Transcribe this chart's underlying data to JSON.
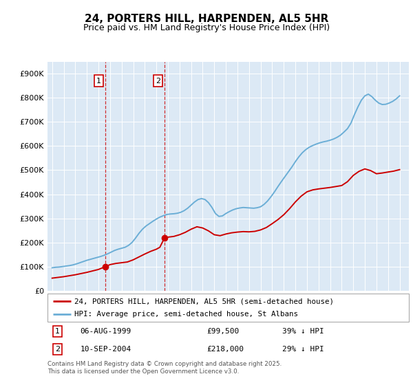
{
  "title": "24, PORTERS HILL, HARPENDEN, AL5 5HR",
  "subtitle": "Price paid vs. HM Land Registry's House Price Index (HPI)",
  "legend_line1": "24, PORTERS HILL, HARPENDEN, AL5 5HR (semi-detached house)",
  "legend_line2": "HPI: Average price, semi-detached house, St Albans",
  "table_row1": [
    "1",
    "06-AUG-1999",
    "£99,500",
    "39% ↓ HPI"
  ],
  "table_row2": [
    "2",
    "10-SEP-2004",
    "£218,000",
    "29% ↓ HPI"
  ],
  "footnote": "Contains HM Land Registry data © Crown copyright and database right 2025.\nThis data is licensed under the Open Government Licence v3.0.",
  "hpi_color": "#6baed6",
  "price_color": "#cc0000",
  "vline_color": "#cc0000",
  "bg_color": "#dce9f5",
  "ylim": [
    0,
    950000
  ],
  "yticks": [
    0,
    100000,
    200000,
    300000,
    400000,
    500000,
    600000,
    700000,
    800000,
    900000
  ],
  "purchase1_x": 1999.583,
  "purchase1_y": 99500,
  "purchase2_x": 2004.692,
  "purchase2_y": 218000,
  "vline1_x": 1999.583,
  "vline2_x": 2004.692,
  "xmin": 1994.6,
  "xmax": 2025.8,
  "hpi_years": [
    1995.0,
    1995.3,
    1995.6,
    1995.9,
    1996.2,
    1996.5,
    1996.8,
    1997.1,
    1997.4,
    1997.7,
    1998.0,
    1998.3,
    1998.6,
    1998.9,
    1999.2,
    1999.5,
    1999.8,
    2000.1,
    2000.4,
    2000.7,
    2001.0,
    2001.3,
    2001.6,
    2001.9,
    2002.2,
    2002.5,
    2002.8,
    2003.1,
    2003.4,
    2003.7,
    2004.0,
    2004.3,
    2004.6,
    2004.9,
    2005.2,
    2005.5,
    2005.8,
    2006.1,
    2006.4,
    2006.7,
    2007.0,
    2007.3,
    2007.6,
    2007.9,
    2008.2,
    2008.5,
    2008.8,
    2009.1,
    2009.4,
    2009.7,
    2010.0,
    2010.3,
    2010.6,
    2010.9,
    2011.2,
    2011.5,
    2011.8,
    2012.1,
    2012.4,
    2012.7,
    2013.0,
    2013.3,
    2013.6,
    2013.9,
    2014.2,
    2014.5,
    2014.8,
    2015.1,
    2015.4,
    2015.7,
    2016.0,
    2016.3,
    2016.6,
    2016.9,
    2017.2,
    2017.5,
    2017.8,
    2018.1,
    2018.4,
    2018.7,
    2019.0,
    2019.3,
    2019.6,
    2019.9,
    2020.2,
    2020.5,
    2020.8,
    2021.1,
    2021.4,
    2021.7,
    2022.0,
    2022.3,
    2022.6,
    2022.9,
    2023.2,
    2023.5,
    2023.8,
    2024.1,
    2024.4,
    2024.7,
    2025.0
  ],
  "hpi_values": [
    95000,
    97000,
    98000,
    100000,
    102000,
    104000,
    107000,
    111000,
    116000,
    121000,
    126000,
    130000,
    134000,
    138000,
    142000,
    147000,
    153000,
    160000,
    167000,
    172000,
    176000,
    180000,
    188000,
    200000,
    218000,
    238000,
    255000,
    268000,
    278000,
    288000,
    297000,
    305000,
    311000,
    316000,
    318000,
    319000,
    321000,
    325000,
    332000,
    342000,
    355000,
    368000,
    378000,
    382000,
    378000,
    365000,
    345000,
    320000,
    308000,
    310000,
    320000,
    328000,
    335000,
    340000,
    343000,
    345000,
    344000,
    343000,
    342000,
    344000,
    348000,
    358000,
    372000,
    390000,
    410000,
    432000,
    453000,
    473000,
    493000,
    513000,
    535000,
    555000,
    572000,
    585000,
    595000,
    602000,
    608000,
    613000,
    617000,
    620000,
    624000,
    629000,
    636000,
    645000,
    658000,
    672000,
    695000,
    730000,
    762000,
    790000,
    808000,
    815000,
    805000,
    790000,
    778000,
    772000,
    773000,
    778000,
    785000,
    795000,
    808000
  ],
  "price_years": [
    1995.0,
    1995.5,
    1996.0,
    1996.5,
    1997.0,
    1997.5,
    1998.0,
    1998.5,
    1999.0,
    1999.583,
    2000.0,
    2000.5,
    2001.0,
    2001.5,
    2002.0,
    2002.5,
    2003.0,
    2003.5,
    2004.0,
    2004.3,
    2004.692,
    2005.0,
    2005.5,
    2006.0,
    2006.5,
    2007.0,
    2007.5,
    2008.0,
    2008.5,
    2009.0,
    2009.5,
    2010.0,
    2010.5,
    2011.0,
    2011.5,
    2012.0,
    2012.5,
    2013.0,
    2013.5,
    2014.0,
    2014.5,
    2015.0,
    2015.5,
    2016.0,
    2016.5,
    2017.0,
    2017.5,
    2018.0,
    2018.5,
    2019.0,
    2019.5,
    2020.0,
    2020.5,
    2021.0,
    2021.5,
    2022.0,
    2022.5,
    2023.0,
    2023.5,
    2024.0,
    2024.5,
    2025.0
  ],
  "price_values": [
    52000,
    55000,
    58000,
    62000,
    66000,
    71000,
    76000,
    82000,
    88000,
    99500,
    108000,
    113000,
    116000,
    119000,
    128000,
    140000,
    152000,
    163000,
    172000,
    180000,
    218000,
    222000,
    225000,
    232000,
    242000,
    255000,
    265000,
    260000,
    248000,
    232000,
    228000,
    235000,
    240000,
    243000,
    245000,
    244000,
    246000,
    252000,
    262000,
    278000,
    295000,
    315000,
    340000,
    368000,
    392000,
    410000,
    418000,
    422000,
    425000,
    428000,
    432000,
    436000,
    452000,
    478000,
    495000,
    505000,
    498000,
    485000,
    488000,
    492000,
    496000,
    502000
  ]
}
